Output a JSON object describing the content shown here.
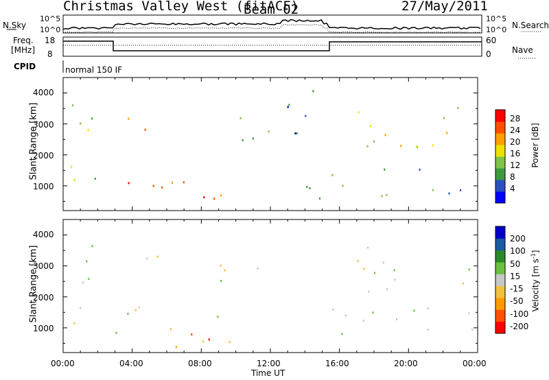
{
  "header": {
    "station": "Christmas Valley West (fitACF)",
    "beam": "Beam 02",
    "date": "27/May/2011"
  },
  "top_panels": {
    "nsky_label": "N.Sky",
    "nsky_ticks": [
      "10^5",
      "10^0"
    ],
    "nsearch_label": "N.Search",
    "nsearch_ticks": [
      "10^5",
      "10^0"
    ],
    "freq_label": "Freq.",
    "freq_unit": "[MHz]",
    "freq_ticks": [
      "18",
      "8"
    ],
    "nave_label": "Nave",
    "nave_ticks": [
      "60",
      "0"
    ],
    "cpid_label": "CPID",
    "cpid_value": "normal 150 IF"
  },
  "chart_data": [
    {
      "type": "heatmap",
      "name": "power",
      "ylabel": "Slant Range [km]",
      "xlabel": "",
      "ylim": [
        200,
        4500
      ],
      "xlim": [
        0,
        24
      ],
      "yticks": [
        "4000",
        "3000",
        "2000",
        "1000"
      ],
      "colorbar_label": "Power [dB]",
      "colorbar_ticks": [
        "28",
        "24",
        "20",
        "16",
        "12",
        "8",
        "4"
      ],
      "colorbar_colors": [
        "#0000ff",
        "#2a4fbf",
        "#3c9a3c",
        "#7fc34a",
        "#f0e000",
        "#ffa000",
        "#ff5000",
        "#ff0000"
      ],
      "scatter_regions": [
        {
          "t0": 0.3,
          "t1": 3.0,
          "r0": 2450,
          "r1": 3800,
          "level": 3
        },
        {
          "t0": 3.2,
          "t1": 5.5,
          "r0": 2800,
          "r1": 3400,
          "level": 6
        },
        {
          "t0": 0.3,
          "t1": 3.0,
          "r0": 850,
          "r1": 1700,
          "level": 3
        },
        {
          "t0": 3.0,
          "t1": 7.0,
          "r0": 700,
          "r1": 1700,
          "level": 7
        },
        {
          "t0": 6.0,
          "t1": 9.5,
          "r0": 300,
          "r1": 1200,
          "level": 6
        },
        {
          "t0": 9.0,
          "t1": 12.0,
          "r0": 2400,
          "r1": 3600,
          "level": 3
        },
        {
          "t0": 12.5,
          "t1": 14.5,
          "r0": 1500,
          "r1": 4300,
          "level": 1
        },
        {
          "t0": 14.0,
          "t1": 24.0,
          "r0": 600,
          "r1": 1700,
          "level": 2
        },
        {
          "t0": 17.0,
          "t1": 24.0,
          "r0": 2200,
          "r1": 3800,
          "level": 4
        }
      ]
    },
    {
      "type": "heatmap",
      "name": "velocity",
      "ylabel": "Slant Range [km]",
      "xlabel": "Time UT",
      "ylim": [
        200,
        4500
      ],
      "xlim": [
        0,
        24
      ],
      "yticks": [
        "4000",
        "3000",
        "2000",
        "1000"
      ],
      "xticks": [
        "00:00",
        "04:00",
        "08:00",
        "12:00",
        "16:00",
        "20:00",
        "00:00"
      ],
      "colorbar_label": "Velocity [m s",
      "colorbar_label_sup": "-1",
      "colorbar_label_end": "]",
      "colorbar_ticks": [
        "200",
        "100",
        "50",
        "15",
        "-15",
        "-50",
        "-100",
        "-200"
      ],
      "colorbar_colors": [
        "#ff0000",
        "#ff5000",
        "#ff9a00",
        "#f0c040",
        "#c8c8c8",
        "#6ac040",
        "#2a8a2a",
        "#1a5aa0",
        "#0000cc"
      ],
      "scatter_regions": [
        {
          "t0": 0.3,
          "t1": 3.0,
          "r0": 2450,
          "r1": 3800,
          "level": 4
        },
        {
          "t0": 3.2,
          "t1": 5.5,
          "r0": 2800,
          "r1": 3400,
          "level": 3
        },
        {
          "t0": 0.3,
          "t1": 9.0,
          "r0": 850,
          "r1": 1700,
          "level": 4
        },
        {
          "t0": 6.0,
          "t1": 12.0,
          "r0": 300,
          "r1": 1000,
          "level": 2
        },
        {
          "t0": 9.0,
          "t1": 12.0,
          "r0": 2400,
          "r1": 3600,
          "level": 4
        },
        {
          "t0": 14.0,
          "t1": 24.0,
          "r0": 700,
          "r1": 1700,
          "level": 4
        },
        {
          "t0": 17.0,
          "t1": 24.0,
          "r0": 2200,
          "r1": 3800,
          "level": 4
        }
      ]
    }
  ]
}
